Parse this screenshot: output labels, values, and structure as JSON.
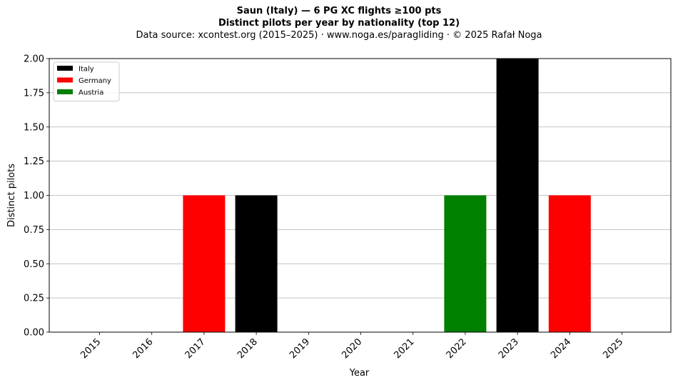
{
  "header": {
    "title_line1": "Saun (Italy)  —  6 PG XC flights ≥100 pts",
    "title_line2": "Distinct pilots per year by nationality (top 12)",
    "subtitle": "Data source: xcontest.org (2015–2025)  ·  www.noga.es/paragliding  ·  © 2025 Rafał Noga"
  },
  "chart_data": {
    "type": "bar",
    "stacked": true,
    "title": "Saun (Italy)  —  6 PG XC flights ≥100 pts",
    "subtitle": "Distinct pilots per year by nationality (top 12)",
    "xlabel": "Year",
    "ylabel": "Distinct pilots",
    "ylim": [
      0,
      2
    ],
    "yticks": [
      "0.00",
      "0.25",
      "0.50",
      "0.75",
      "1.00",
      "1.25",
      "1.50",
      "1.75",
      "2.00"
    ],
    "grid": "horizontal",
    "legend_position": "top-left",
    "categories": [
      "2015",
      "2016",
      "2017",
      "2018",
      "2019",
      "2020",
      "2021",
      "2022",
      "2023",
      "2024",
      "2025"
    ],
    "series": [
      {
        "name": "Italy",
        "color": "#000000",
        "values": [
          0,
          0,
          0,
          1,
          0,
          0,
          0,
          0,
          2,
          0,
          0
        ]
      },
      {
        "name": "Germany",
        "color": "#ff0000",
        "values": [
          0,
          0,
          1,
          0,
          0,
          0,
          0,
          0,
          0,
          1,
          0
        ]
      },
      {
        "name": "Austria",
        "color": "#008000",
        "values": [
          0,
          0,
          0,
          0,
          0,
          0,
          0,
          1,
          0,
          0,
          0
        ]
      }
    ]
  }
}
